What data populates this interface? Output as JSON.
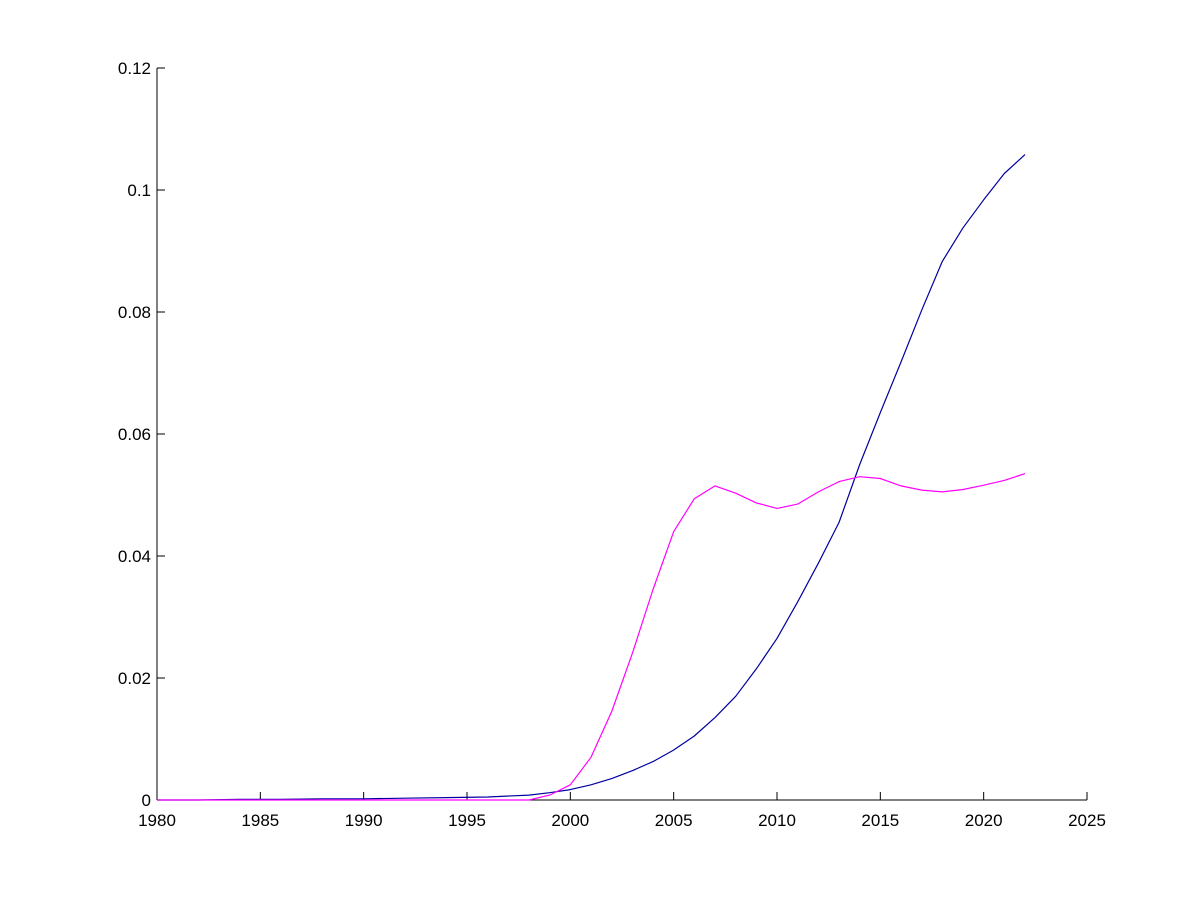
{
  "chart_data": {
    "type": "line",
    "title": "",
    "xlabel": "",
    "ylabel": "",
    "xlim": [
      1980,
      2025
    ],
    "ylim": [
      0,
      0.12
    ],
    "xticks": [
      1980,
      1985,
      1990,
      1995,
      2000,
      2005,
      2010,
      2015,
      2020,
      2025
    ],
    "xtick_labels": [
      "1980",
      "1985",
      "1990",
      "1995",
      "2000",
      "2005",
      "2010",
      "2015",
      "2020",
      "2025"
    ],
    "yticks": [
      0,
      0.02,
      0.04,
      0.06,
      0.08,
      0.1,
      0.12
    ],
    "ytick_labels": [
      "0",
      "0.02",
      "0.04",
      "0.06",
      "0.08",
      "0.1",
      "0.12"
    ],
    "grid": false,
    "legend": "none",
    "series": [
      {
        "color": "#0000a0",
        "x": [
          1980,
          1982,
          1984,
          1986,
          1988,
          1990,
          1992,
          1994,
          1996,
          1998,
          1999,
          2000,
          2001,
          2002,
          2003,
          2004,
          2005,
          2006,
          2007,
          2008,
          2009,
          2010,
          2011,
          2012,
          2013,
          2014,
          2015,
          2016,
          2017,
          2018,
          2019,
          2020,
          2021,
          2022
        ],
        "y": [
          0,
          0,
          0.0001,
          0.0001,
          0.0002,
          0.0002,
          0.0003,
          0.0004,
          0.0005,
          0.0008,
          0.0012,
          0.0017,
          0.0025,
          0.0035,
          0.0048,
          0.0063,
          0.0082,
          0.0105,
          0.0135,
          0.017,
          0.0215,
          0.0265,
          0.0325,
          0.0388,
          0.0455,
          0.055,
          0.0635,
          0.0718,
          0.0803,
          0.0883,
          0.0938,
          0.0984,
          0.1027,
          0.1058
        ]
      },
      {
        "color": "#ff00ff",
        "x": [
          1980,
          1990,
          1998,
          1999,
          2000,
          2001,
          2002,
          2003,
          2004,
          2005,
          2006,
          2007,
          2008,
          2009,
          2010,
          2011,
          2012,
          2013,
          2014,
          2015,
          2016,
          2017,
          2018,
          2019,
          2020,
          2021,
          2022
        ],
        "y": [
          0,
          0,
          0,
          0.0008,
          0.0025,
          0.007,
          0.0145,
          0.024,
          0.0345,
          0.044,
          0.0494,
          0.0515,
          0.0503,
          0.0487,
          0.0478,
          0.0485,
          0.0505,
          0.0522,
          0.053,
          0.0527,
          0.0515,
          0.0508,
          0.0505,
          0.0509,
          0.0516,
          0.0524,
          0.0535
        ]
      }
    ]
  }
}
